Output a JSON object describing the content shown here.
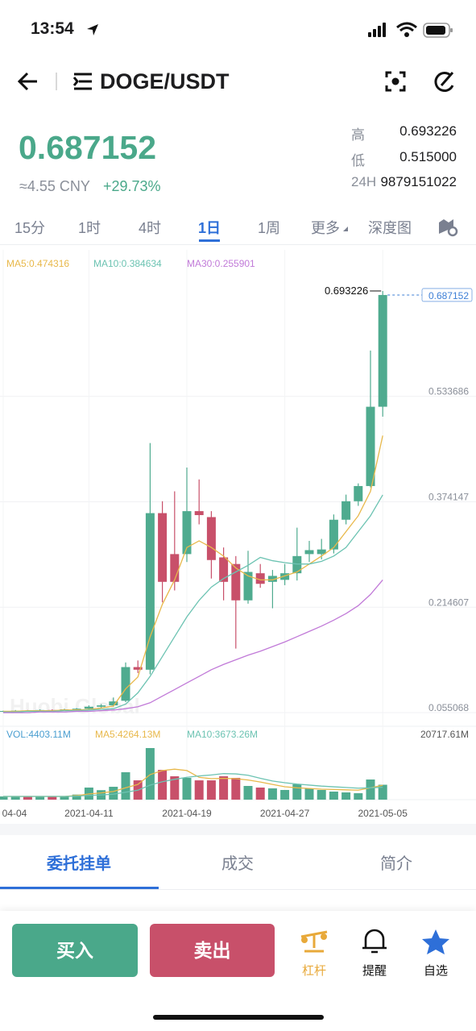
{
  "status": {
    "time": "13:54"
  },
  "header": {
    "pair": "DOGE/USDT"
  },
  "ticker": {
    "price": "0.687152",
    "cny": "≈4.55 CNY",
    "change": "+29.73%",
    "stats": [
      {
        "label": "高",
        "value": "0.693226"
      },
      {
        "label": "低",
        "value": "0.515000"
      },
      {
        "label": "24H",
        "value": "9879151022"
      }
    ]
  },
  "intervals": {
    "items": [
      "15分",
      "1时",
      "4时",
      "1日",
      "1周",
      "更多",
      "深度图"
    ],
    "active": 3
  },
  "chart_data": {
    "type": "candlestick",
    "watermark": "Huobi Global",
    "categories": [
      "04-04",
      null,
      null,
      null,
      null,
      null,
      null,
      "2021-04-11",
      null,
      null,
      null,
      null,
      null,
      null,
      null,
      "2021-04-19",
      null,
      null,
      null,
      null,
      null,
      null,
      null,
      "2021-04-27",
      null,
      null,
      null,
      null,
      null,
      null,
      null,
      "2021-05-05"
    ],
    "open": [
      0.057,
      0.0575,
      0.058,
      0.0578,
      0.059,
      0.0585,
      0.06,
      0.061,
      0.064,
      0.066,
      0.073,
      0.124,
      0.12,
      0.357,
      0.295,
      0.295,
      0.36,
      0.351,
      0.29,
      0.28,
      0.225,
      0.266,
      0.253,
      0.256,
      0.266,
      0.295,
      0.295,
      0.302,
      0.347,
      0.375,
      0.398,
      0.518
    ],
    "high": [
      0.058,
      0.059,
      0.059,
      0.06,
      0.06,
      0.061,
      0.062,
      0.066,
      0.068,
      0.078,
      0.131,
      0.134,
      0.463,
      0.375,
      0.39,
      0.426,
      0.408,
      0.36,
      0.305,
      0.292,
      0.3,
      0.28,
      0.271,
      0.28,
      0.335,
      0.315,
      0.318,
      0.355,
      0.385,
      0.402,
      0.603,
      0.693226
    ],
    "low": [
      0.056,
      0.056,
      0.057,
      0.057,
      0.058,
      0.058,
      0.059,
      0.06,
      0.062,
      0.064,
      0.071,
      0.115,
      0.113,
      0.222,
      0.24,
      0.283,
      0.34,
      0.258,
      0.225,
      0.152,
      0.22,
      0.244,
      0.213,
      0.248,
      0.255,
      0.283,
      0.287,
      0.296,
      0.34,
      0.368,
      0.396,
      0.503
    ],
    "close": [
      0.0575,
      0.058,
      0.0578,
      0.059,
      0.0585,
      0.06,
      0.061,
      0.064,
      0.066,
      0.072,
      0.124,
      0.12,
      0.357,
      0.253,
      0.253,
      0.36,
      0.354,
      0.286,
      0.253,
      0.225,
      0.268,
      0.25,
      0.262,
      0.266,
      0.292,
      0.301,
      0.302,
      0.347,
      0.375,
      0.398,
      0.518,
      0.687152
    ],
    "up_color": "#4fab8f",
    "down_color": "#c8506a",
    "ylim": [
      0.0356,
      0.7188
    ],
    "yticks": [
      0.055068,
      0.214607,
      0.374147,
      0.533686
    ],
    "grid": true,
    "series": [
      {
        "label": "MA5:0.474316",
        "color": "#e8b84a",
        "values": [
          0.057,
          0.057,
          0.058,
          0.058,
          0.058,
          0.059,
          0.059,
          0.06,
          0.062,
          0.065,
          0.091,
          0.109,
          0.17,
          0.219,
          0.256,
          0.305,
          0.315,
          0.305,
          0.292,
          0.274,
          0.262,
          0.256,
          0.256,
          0.262,
          0.268,
          0.28,
          0.292,
          0.305,
          0.329,
          0.353,
          0.39,
          0.474316
        ]
      },
      {
        "label": "MA10:0.384634",
        "color": "#6cc3b2",
        "values": [
          0.056,
          0.056,
          0.057,
          0.057,
          0.057,
          0.058,
          0.058,
          0.059,
          0.06,
          0.061,
          0.068,
          0.085,
          0.11,
          0.14,
          0.17,
          0.2,
          0.225,
          0.245,
          0.258,
          0.268,
          0.278,
          0.29,
          0.285,
          0.282,
          0.28,
          0.28,
          0.284,
          0.292,
          0.305,
          0.329,
          0.353,
          0.384634
        ]
      },
      {
        "label": "MA30:0.255901",
        "color": "#c17ad8",
        "values": [
          0.055,
          0.055,
          0.055,
          0.056,
          0.056,
          0.056,
          0.057,
          0.057,
          0.058,
          0.059,
          0.061,
          0.064,
          0.07,
          0.08,
          0.09,
          0.1,
          0.11,
          0.12,
          0.128,
          0.135,
          0.142,
          0.148,
          0.155,
          0.162,
          0.17,
          0.178,
          0.186,
          0.195,
          0.205,
          0.217,
          0.234,
          0.255901
        ]
      }
    ],
    "volume_label": "VOL:4403.11M",
    "volume": [
      950,
      900,
      1000,
      950,
      900,
      1000,
      1500,
      3570,
      2800,
      3800,
      8100,
      5700,
      15240,
      8800,
      6900,
      6430,
      5700,
      5700,
      6900,
      6430,
      4050,
      3570,
      3330,
      2860,
      4520,
      3330,
      2860,
      2380,
      2140,
      1900,
      5950,
      4403.11
    ],
    "vlim": [
      0,
      20717.61
    ],
    "vticks": [
      {
        "value": 20717.61,
        "label": "20717.61M"
      }
    ],
    "volume_series": [
      {
        "label": "MA5:4264.13M",
        "color": "#e8b84a",
        "values": [
          950,
          950,
          950,
          950,
          950,
          960,
          1200,
          1700,
          2000,
          2400,
          3500,
          4500,
          7400,
          8600,
          9000,
          8600,
          6600,
          6200,
          6300,
          6200,
          5800,
          5200,
          4500,
          3800,
          3500,
          3300,
          3100,
          3000,
          2900,
          2800,
          3500,
          4264.13
        ]
      },
      {
        "label": "MA10:3673.26M",
        "color": "#6cc3b2",
        "values": [
          950,
          950,
          950,
          950,
          950,
          955,
          1050,
          1250,
          1400,
          1600,
          2200,
          2800,
          4300,
          5300,
          6000,
          6600,
          7000,
          7300,
          7700,
          7600,
          7200,
          6300,
          5500,
          5000,
          4600,
          4300,
          4000,
          3800,
          3600,
          3400,
          3500,
          3673.26
        ]
      }
    ]
  },
  "tabs": {
    "items": [
      "委托挂单",
      "成交",
      "简介"
    ],
    "active": 0
  },
  "actions": {
    "buy": "买入",
    "sell": "卖出",
    "icons": [
      "杠杆",
      "提醒",
      "自选"
    ]
  }
}
